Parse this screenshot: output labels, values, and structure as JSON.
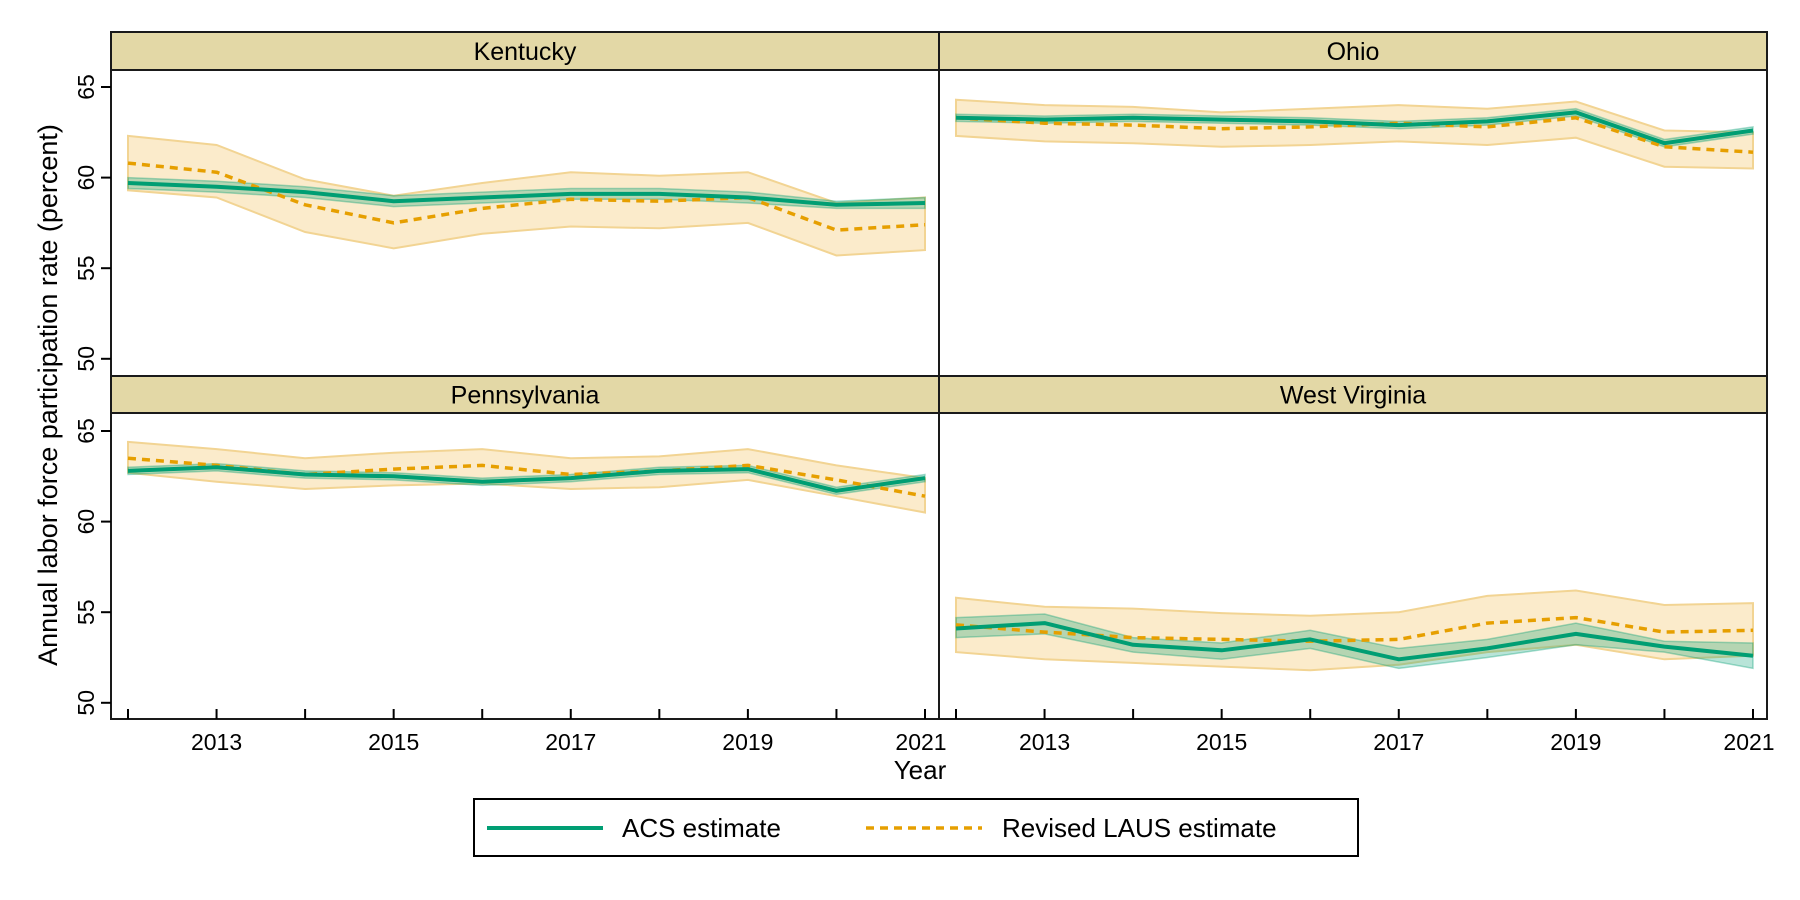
{
  "chart_data": {
    "type": "line",
    "layout": "facet-grid-2x2",
    "ylabel": "Annual labor force participation rate (percent)",
    "xlabel": "Year",
    "ylim": [
      49,
      66
    ],
    "yticks": [
      50,
      55,
      60,
      65
    ],
    "xlim": [
      2012,
      2021
    ],
    "xticks": [
      2012,
      2013,
      2014,
      2015,
      2016,
      2017,
      2018,
      2019,
      2020,
      2021
    ],
    "xtick_labels": [
      "2013",
      "2015",
      "2017",
      "2019",
      "2021"
    ],
    "grid": false,
    "legend": {
      "position": "bottom-center",
      "entries": [
        {
          "key": "acs",
          "label": "ACS estimate",
          "style": "solid"
        },
        {
          "key": "laus",
          "label": "Revised LAUS estimate",
          "style": "dashed"
        }
      ]
    },
    "colors": {
      "acs": "#009E73",
      "acs_band": "#009E73",
      "laus": "#E69F00",
      "laus_band_fill": "#FBEBCB",
      "laus_band_stroke": "#F2D493",
      "strip": "#E3D8A6"
    },
    "x": [
      2012,
      2013,
      2014,
      2015,
      2016,
      2017,
      2018,
      2019,
      2020,
      2021
    ],
    "panels": [
      {
        "title": "Kentucky",
        "series": [
          {
            "name": "ACS estimate",
            "key": "acs",
            "values": [
              59.7,
              59.5,
              59.2,
              58.7,
              58.9,
              59.1,
              59.1,
              58.9,
              58.5,
              58.6
            ],
            "lower": [
              59.4,
              59.2,
              58.9,
              58.4,
              58.6,
              58.8,
              58.8,
              58.6,
              58.3,
              58.3
            ],
            "upper": [
              60.0,
              59.8,
              59.5,
              59.0,
              59.2,
              59.4,
              59.4,
              59.2,
              58.7,
              58.9
            ]
          },
          {
            "name": "Revised LAUS estimate",
            "key": "laus",
            "values": [
              60.8,
              60.3,
              58.5,
              57.5,
              58.3,
              58.8,
              58.7,
              58.9,
              57.1,
              57.4
            ],
            "lower": [
              59.3,
              58.9,
              57.0,
              56.1,
              56.9,
              57.3,
              57.2,
              57.5,
              55.7,
              56.0
            ],
            "upper": [
              62.3,
              61.8,
              59.9,
              59.0,
              59.7,
              60.3,
              60.1,
              60.3,
              58.6,
              58.9
            ]
          }
        ]
      },
      {
        "title": "Ohio",
        "series": [
          {
            "name": "ACS estimate",
            "key": "acs",
            "values": [
              63.3,
              63.2,
              63.3,
              63.2,
              63.1,
              62.9,
              63.1,
              63.6,
              61.9,
              62.6
            ],
            "lower": [
              63.1,
              63.0,
              63.1,
              63.0,
              62.9,
              62.7,
              62.9,
              63.4,
              61.7,
              62.4
            ],
            "upper": [
              63.5,
              63.4,
              63.5,
              63.4,
              63.3,
              63.1,
              63.3,
              63.8,
              62.1,
              62.8
            ]
          },
          {
            "name": "Revised LAUS estimate",
            "key": "laus",
            "values": [
              63.3,
              63.0,
              62.9,
              62.7,
              62.8,
              63.0,
              62.8,
              63.3,
              61.7,
              61.4
            ],
            "lower": [
              62.3,
              62.0,
              61.9,
              61.7,
              61.8,
              62.0,
              61.8,
              62.2,
              60.6,
              60.5
            ],
            "upper": [
              64.3,
              64.0,
              63.9,
              63.6,
              63.8,
              64.0,
              63.8,
              64.2,
              62.6,
              62.5
            ]
          }
        ]
      },
      {
        "title": "Pennsylvania",
        "series": [
          {
            "name": "ACS estimate",
            "key": "acs",
            "values": [
              62.8,
              63.0,
              62.6,
              62.5,
              62.2,
              62.4,
              62.8,
              62.9,
              61.7,
              62.4
            ],
            "lower": [
              62.6,
              62.8,
              62.4,
              62.3,
              62.0,
              62.2,
              62.6,
              62.7,
              61.5,
              62.2
            ],
            "upper": [
              63.0,
              63.2,
              62.8,
              62.7,
              62.4,
              62.6,
              63.0,
              63.1,
              61.9,
              62.6
            ]
          },
          {
            "name": "Revised LAUS estimate",
            "key": "laus",
            "values": [
              63.5,
              63.1,
              62.6,
              62.9,
              63.1,
              62.6,
              62.8,
              63.1,
              62.3,
              61.4
            ],
            "lower": [
              62.7,
              62.2,
              61.8,
              62.0,
              62.1,
              61.8,
              61.9,
              62.3,
              61.4,
              60.5
            ],
            "upper": [
              64.4,
              64.0,
              63.5,
              63.8,
              64.0,
              63.5,
              63.6,
              64.0,
              63.1,
              62.4
            ]
          }
        ]
      },
      {
        "title": "West Virginia",
        "series": [
          {
            "name": "ACS estimate",
            "key": "acs",
            "values": [
              54.1,
              54.4,
              53.2,
              52.9,
              53.5,
              52.4,
              53.0,
              53.8,
              53.1,
              52.6
            ],
            "lower": [
              53.6,
              53.8,
              52.8,
              52.4,
              53.0,
              51.9,
              52.5,
              53.2,
              52.8,
              51.9
            ],
            "upper": [
              54.7,
              54.9,
              53.6,
              53.3,
              54.0,
              53.0,
              53.5,
              54.4,
              53.4,
              53.3
            ]
          },
          {
            "name": "Revised LAUS estimate",
            "key": "laus",
            "values": [
              54.3,
              53.9,
              53.6,
              53.5,
              53.4,
              53.5,
              54.4,
              54.7,
              53.9,
              54.0
            ],
            "lower": [
              52.8,
              52.4,
              52.2,
              52.0,
              51.8,
              52.1,
              52.8,
              53.2,
              52.4,
              52.6
            ],
            "upper": [
              55.8,
              55.3,
              55.2,
              54.95,
              54.8,
              55.0,
              55.9,
              56.2,
              55.4,
              55.5
            ]
          }
        ]
      }
    ]
  }
}
